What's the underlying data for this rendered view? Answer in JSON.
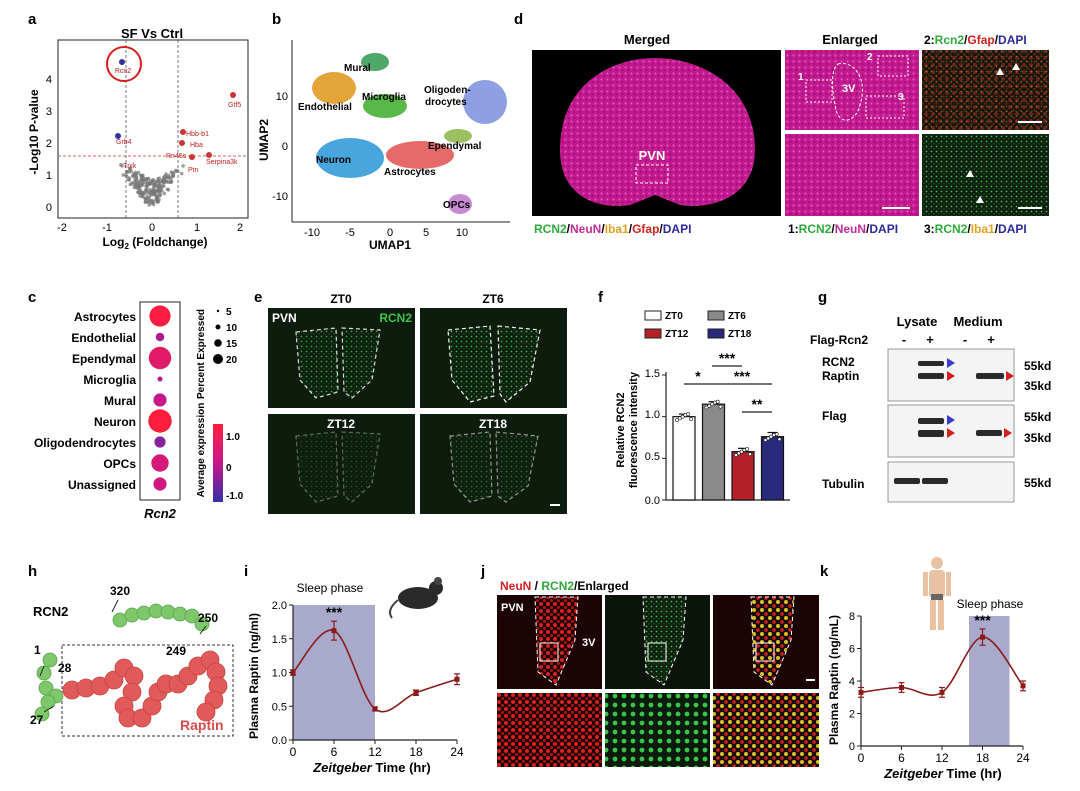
{
  "panels": {
    "a": {
      "letter": "a",
      "title": "SF Vs Ctrl",
      "ylabel": "-Log10 P-value",
      "xlabel": "Log",
      "xlabel_sub": "2",
      "xlabel_rest": " (Foldchange)",
      "genes": [
        "Rcn2",
        "Gtf5",
        "Hbb-b1",
        "Hba",
        "Grb4",
        "Rn45s",
        "Serpina3k",
        "Ptn",
        "Tnik"
      ],
      "xticks": [
        "-2",
        "-1",
        "0",
        "1",
        "2"
      ],
      "yticks": [
        "0",
        "1",
        "2",
        "3",
        "4"
      ]
    },
    "b": {
      "letter": "b",
      "xlabel": "UMAP1",
      "ylabel": "UMAP2",
      "clusters": [
        "Mural",
        "Endothelial",
        "Microglia",
        "Oligoden-",
        "drocytes",
        "Neuron",
        "Astrocytes",
        "Ependymal",
        "OPCs"
      ],
      "xticks": [
        "-10",
        "-5",
        "0",
        "5",
        "10"
      ],
      "yticks": [
        "10",
        "0",
        "-10"
      ]
    },
    "d": {
      "letter": "d",
      "headers": [
        "Merged",
        "Enlarged"
      ],
      "pvn": "PVN",
      "v3": "3V",
      "boxes": [
        "1",
        "2",
        "3"
      ],
      "ins2_label": "2:",
      "ins2_rcn2": "Rcn2",
      "ins2_gfap": "Gfap",
      "ins2_dapi": "DAPI",
      "leg_rcn2": "RCN2",
      "leg_neun": "NeuN",
      "leg_iba1": "Iba1",
      "leg_gfap": "Gfap",
      "leg_dapi": "DAPI",
      "leg1_prefix": "1:",
      "leg3_prefix": "3:",
      "sep": "/"
    },
    "c": {
      "letter": "c",
      "cell_types": [
        "Astrocytes",
        "Endothelial",
        "Ependymal",
        "Microglia",
        "Mural",
        "Neuron",
        "Oligodendrocytes",
        "OPCs",
        "Unassigned"
      ],
      "gene": "Rcn2",
      "size_title": "Percent Expressed",
      "size_values": [
        "5",
        "10",
        "15",
        "20"
      ],
      "color_title": "Average expression",
      "color_values": [
        "1.0",
        "0",
        "-1.0"
      ]
    },
    "e": {
      "letter": "e",
      "pvn": "PVN",
      "rcn2": "RCN2",
      "times": [
        "ZT0",
        "ZT6",
        "ZT12",
        "ZT18"
      ]
    },
    "f": {
      "letter": "f",
      "legend": [
        "ZT0",
        "ZT6",
        "ZT12",
        "ZT18"
      ],
      "ylabel1": "Relative RCN2",
      "ylabel2": "fluorescence intensity",
      "yticks": [
        "0.0",
        "0.5",
        "1.0",
        "1.5"
      ],
      "sig": [
        "*",
        "***",
        "***",
        "**"
      ]
    },
    "g": {
      "letter": "g",
      "lysate": "Lysate",
      "medium": "Medium",
      "flag_rcn2": "Flag-Rcn2",
      "lanes": [
        "-",
        "+",
        "-",
        "+"
      ],
      "rows": [
        "RCN2",
        "Raptin",
        "Flag",
        "Tubulin"
      ],
      "mw": [
        "55kd",
        "35kd",
        "55kd",
        "35kd",
        "55kd"
      ]
    },
    "h": {
      "letter": "h",
      "protein": "RCN2",
      "fragment": "Raptin",
      "residues": [
        "320",
        "250",
        "249",
        "1",
        "28",
        "27"
      ]
    },
    "i": {
      "letter": "i",
      "phase": "Sleep phase",
      "ylabel": "Plasma Raptin (ng/ml)",
      "xlabel_italic": "Zeitgeber",
      "xlabel_rest": " Time (hr)",
      "sig": "***",
      "xticks": [
        "0",
        "6",
        "12",
        "18",
        "24"
      ],
      "yticks": [
        "0.0",
        "0.5",
        "1.0",
        "1.5",
        "2.0"
      ]
    },
    "j": {
      "letter": "j",
      "title_neun": "NeuN",
      "title_rcn2": "RCN2",
      "title_enl": "/Enlarged",
      "title_sep": " / ",
      "pvn": "PVN",
      "v3": "3V"
    },
    "k": {
      "letter": "k",
      "phase": "Sleep phase",
      "ylabel": "Plasma Raptin (ng/mL)",
      "xlabel_italic": "Zeitgeber",
      "xlabel_rest": " Time (hr)",
      "sig": "***",
      "xticks": [
        "0",
        "6",
        "12",
        "18",
        "24"
      ],
      "yticks": [
        "0",
        "2",
        "4",
        "6",
        "8"
      ]
    }
  },
  "chart_data": [
    {
      "panel": "f",
      "type": "bar",
      "categories": [
        "ZT0",
        "ZT6",
        "ZT12",
        "ZT18"
      ],
      "values": [
        1.0,
        1.15,
        0.58,
        0.76
      ],
      "errors": [
        0.03,
        0.03,
        0.04,
        0.05
      ],
      "colors": [
        "#ffffff",
        "#8a8a8a",
        "#b5202a",
        "#2a2a7c"
      ],
      "ylabel": "Relative RCN2 fluorescence intensity",
      "ylim": [
        0,
        1.5
      ]
    },
    {
      "panel": "i",
      "type": "line",
      "x": [
        0,
        6,
        12,
        18,
        24
      ],
      "y": [
        1.0,
        1.62,
        0.46,
        0.7,
        0.9
      ],
      "errors": [
        0.04,
        0.14,
        0.03,
        0.04,
        0.08
      ],
      "shaded_x": [
        0,
        12
      ],
      "xlabel": "Zeitgeber Time (hr)",
      "ylabel": "Plasma Raptin (ng/ml)",
      "xlim": [
        0,
        24
      ],
      "ylim": [
        0,
        2.0
      ]
    },
    {
      "panel": "k",
      "type": "line",
      "x": [
        0,
        6,
        12,
        18,
        24
      ],
      "y": [
        3.3,
        3.6,
        3.3,
        6.7,
        3.7
      ],
      "errors": [
        0.3,
        0.3,
        0.3,
        0.5,
        0.3
      ],
      "shaded_x": [
        16,
        22
      ],
      "xlabel": "Zeitgeber Time (hr)",
      "ylabel": "Plasma Raptin (ng/mL)",
      "xlim": [
        0,
        24
      ],
      "ylim": [
        0,
        8
      ]
    },
    {
      "panel": "c",
      "type": "scatter",
      "categories": [
        "Astrocytes",
        "Endothelial",
        "Ependymal",
        "Microglia",
        "Mural",
        "Neuron",
        "Oligodendrocytes",
        "OPCs",
        "Unassigned"
      ],
      "percent_expressed": [
        18,
        3,
        20,
        1,
        7,
        22,
        5,
        12,
        7
      ],
      "average_expression": [
        1.2,
        -0.2,
        0.6,
        -0.1,
        0.0,
        1.3,
        -0.4,
        0.3,
        0.2
      ]
    }
  ]
}
